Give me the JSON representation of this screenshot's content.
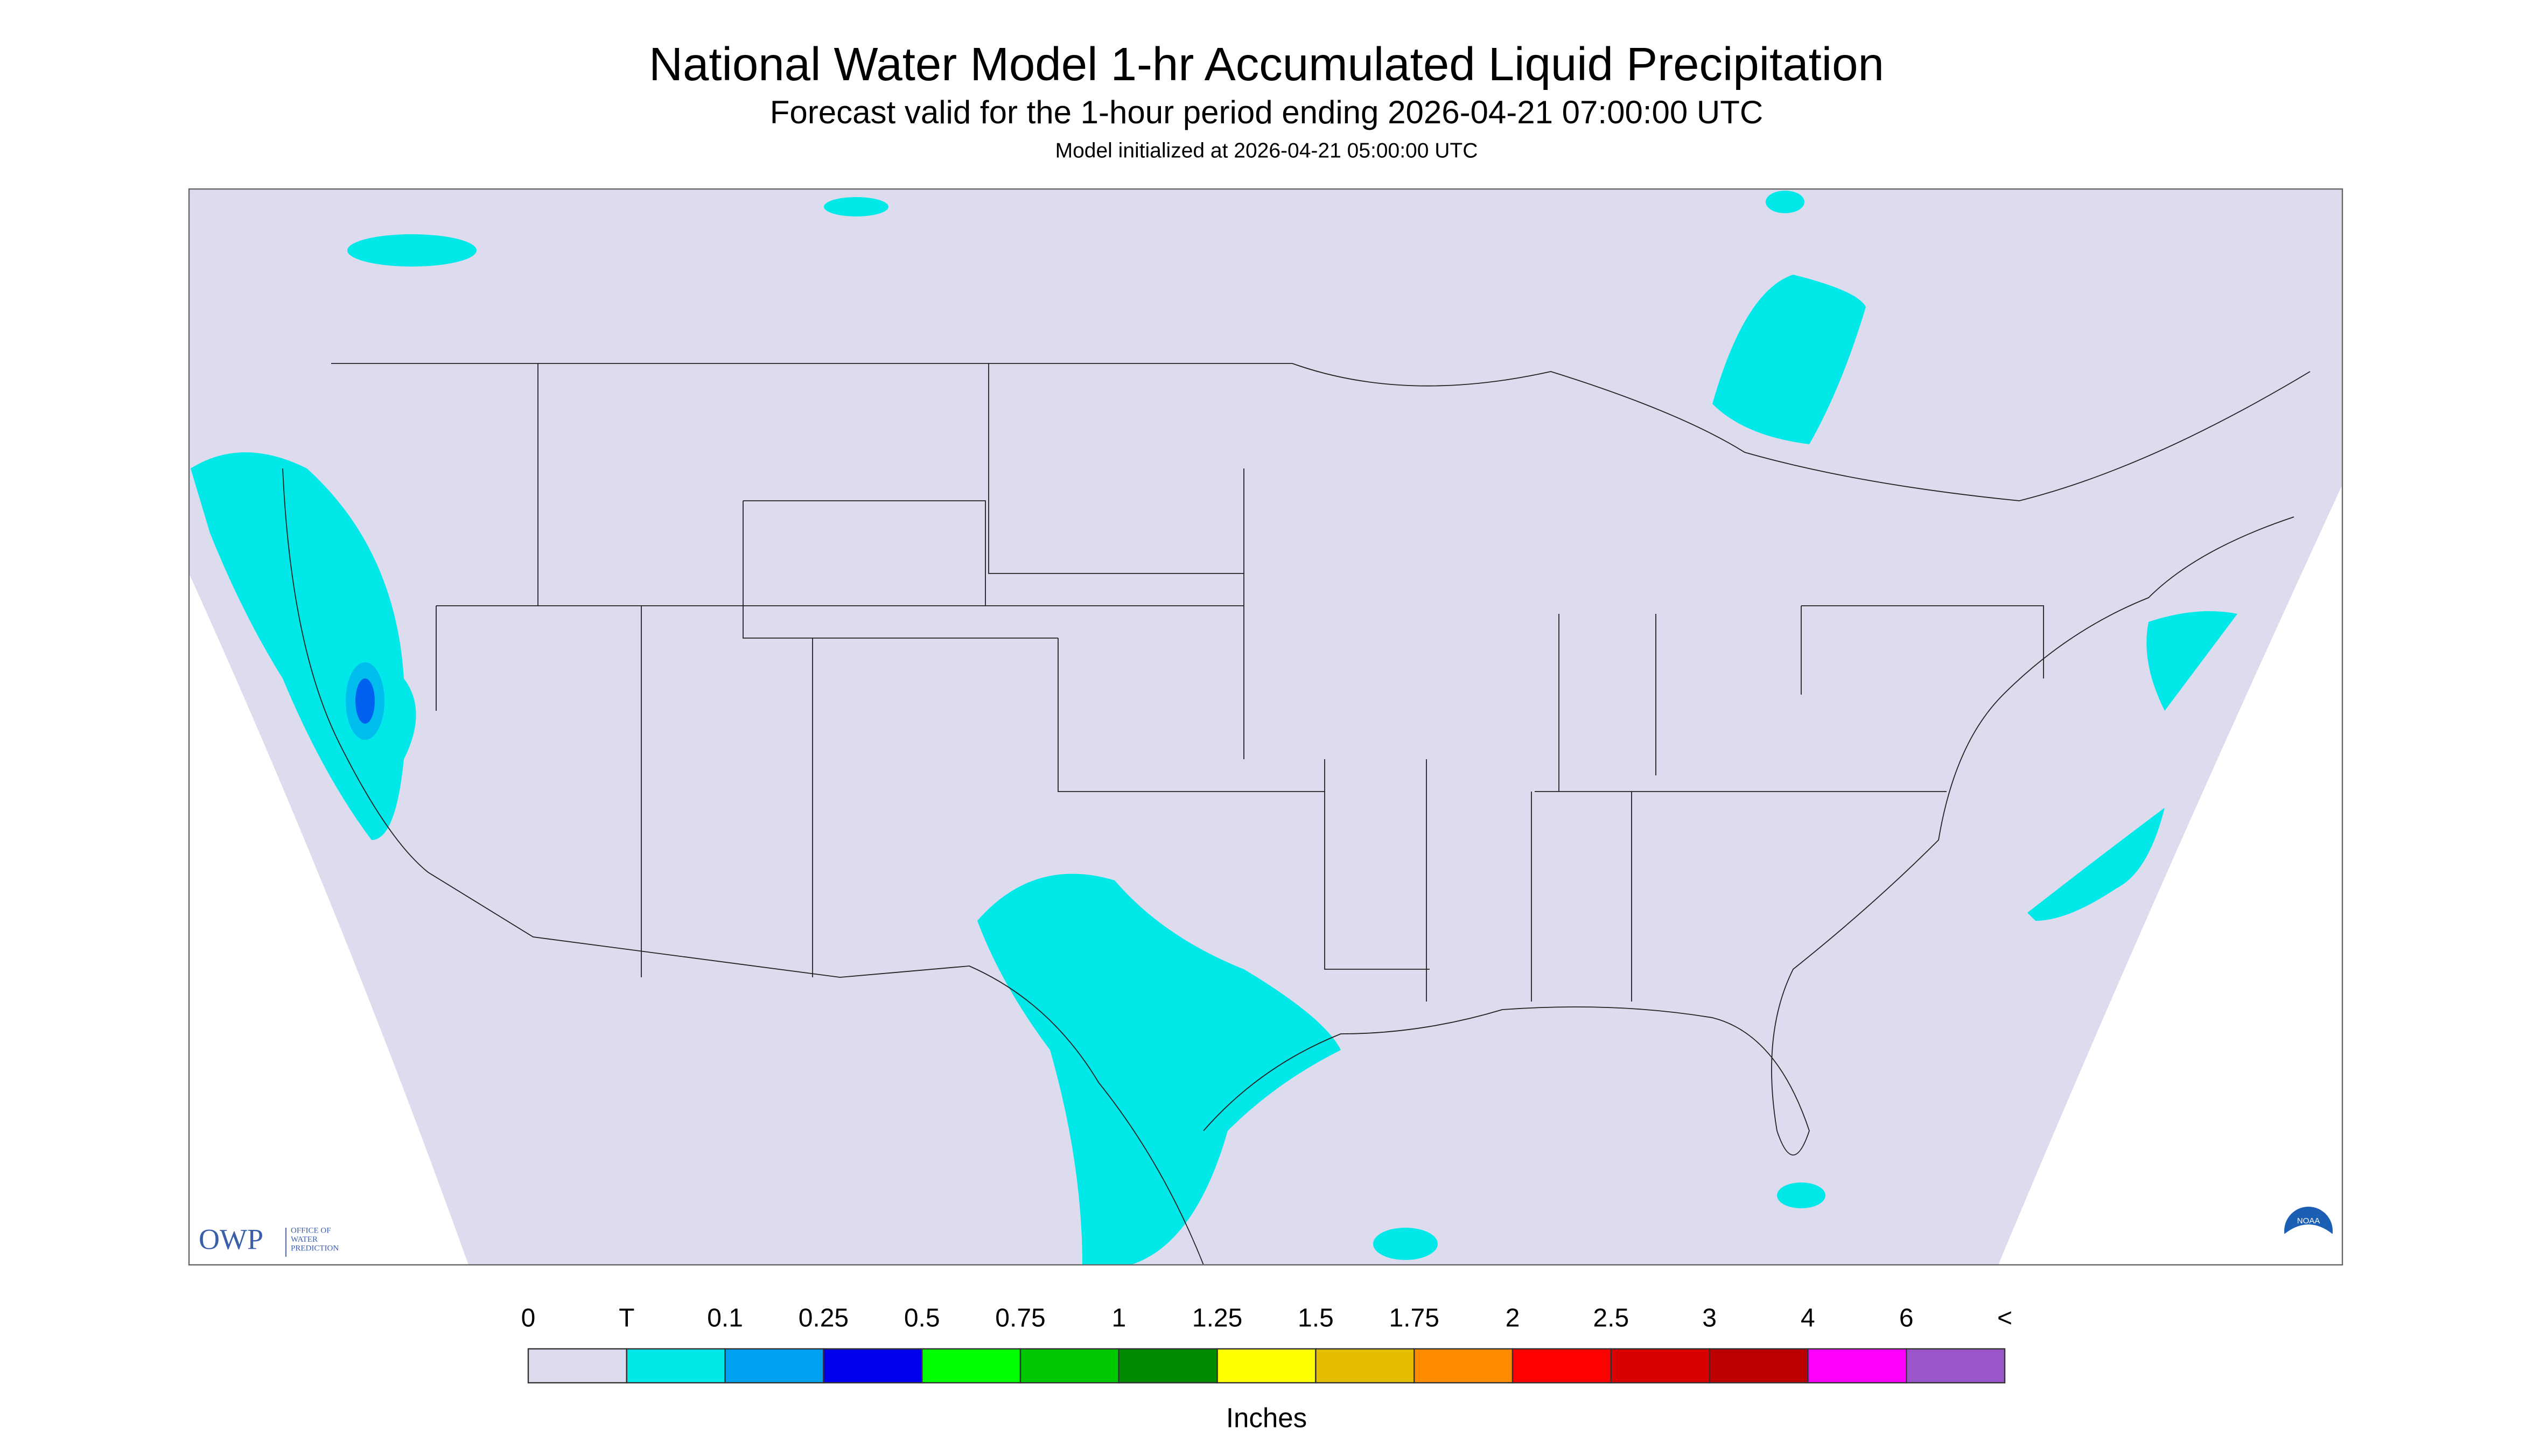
{
  "header": {
    "title": "National Water Model 1-hr Accumulated Liquid Precipitation",
    "subtitle": "Forecast valid for the 1-hour period ending 2026-04-21 07:00:00 UTC",
    "init": "Model initialized at 2026-04-21 05:00:00 UTC"
  },
  "legend": {
    "labels": [
      "0",
      "T",
      "0.1",
      "0.25",
      "0.5",
      "0.75",
      "1",
      "1.25",
      "1.5",
      "1.75",
      "2",
      "2.5",
      "3",
      "4",
      "6",
      "<"
    ],
    "colors": [
      "#dcdcee",
      "#00e8e8",
      "#00a0f0",
      "#0000ee",
      "#00ff00",
      "#00c800",
      "#008c00",
      "#ffff00",
      "#e6be00",
      "#ff8c00",
      "#ff0000",
      "#d80000",
      "#bc0000",
      "#ff00ff",
      "#9955c9"
    ],
    "unit": "Inches"
  },
  "logo": {
    "abbr": "OWP",
    "lines": [
      "OFFICE OF",
      "WATER",
      "PREDICTION"
    ]
  },
  "badge": "NOAA"
}
